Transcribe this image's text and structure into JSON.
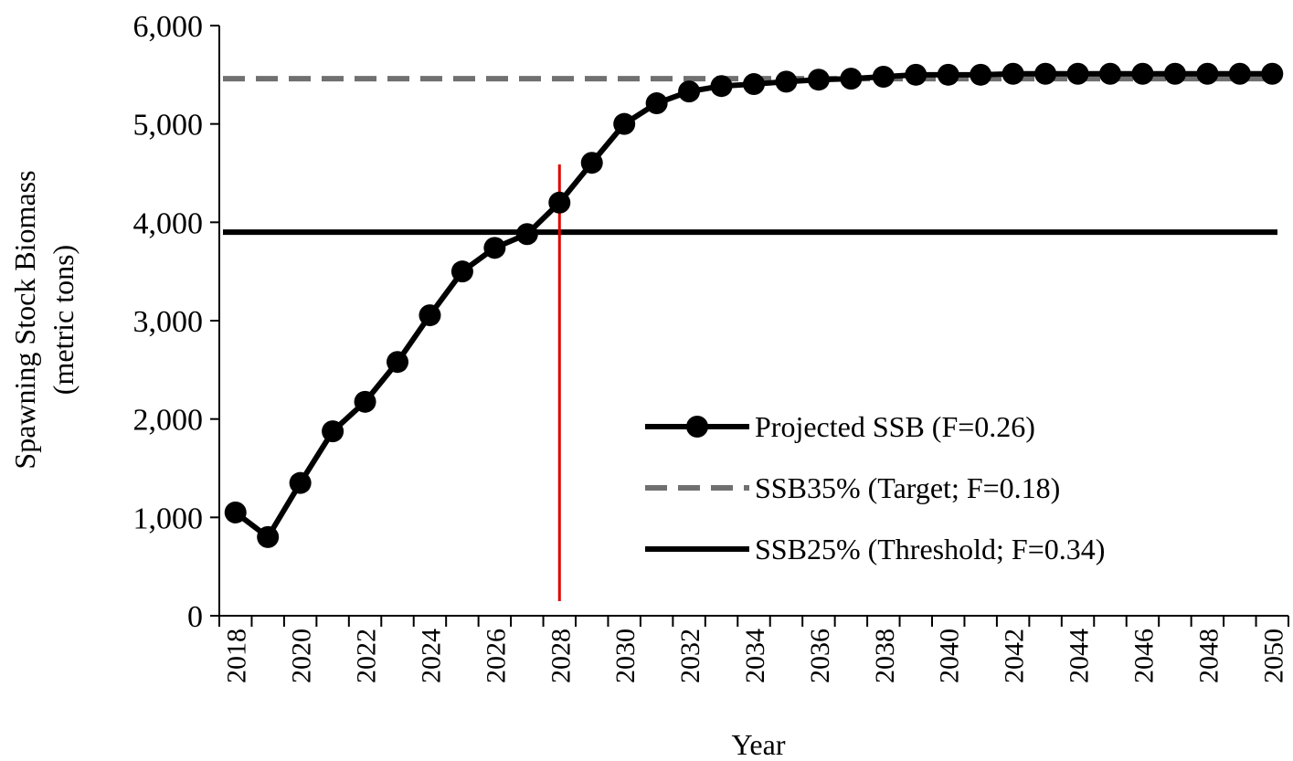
{
  "chart_data": {
    "type": "line",
    "xlabel": "Year",
    "ylabel": [
      "Spawning Stock Biomass",
      "(metric tons)"
    ],
    "categories": [
      "2018",
      null,
      "2020",
      null,
      "2022",
      null,
      "2024",
      null,
      "2026",
      null,
      "2028",
      null,
      "2030",
      null,
      "2032",
      null,
      "2034",
      null,
      "2036",
      null,
      "2038",
      null,
      "2040",
      null,
      "2042",
      null,
      "2044",
      null,
      "2046",
      null,
      "2048",
      null,
      "2050"
    ],
    "series": [
      {
        "name": "Projected SSB (F=0.26)",
        "color": "#000000",
        "values": [
          1050,
          800,
          1350,
          1875,
          2175,
          2580,
          3055,
          3500,
          3740,
          3880,
          4200,
          4605,
          5000,
          5210,
          5330,
          5385,
          5405,
          5430,
          5450,
          5460,
          5480,
          5500,
          5500,
          5500,
          5510,
          5510,
          5510,
          5510,
          5510,
          5510,
          5510,
          5510,
          5510
        ]
      }
    ],
    "hlines": [
      {
        "name": "SSB35% (Target; F=0.18)",
        "color": "#707070",
        "dashed": true,
        "value": 5460
      },
      {
        "name": "SSB25% (Threshold; F=0.34)",
        "color": "#000000",
        "dashed": false,
        "value": 3900
      }
    ],
    "vline": {
      "category": "2028",
      "color": "#e00000"
    },
    "ylim": [
      0,
      6000
    ],
    "yticks": [
      0,
      {
        "value": 1000,
        "label": "1,000"
      },
      {
        "value": 2000,
        "label": "2,000"
      },
      {
        "value": 3000,
        "label": "3,000"
      },
      {
        "value": 4000,
        "label": "4,000"
      },
      {
        "value": 5000,
        "label": "5,000"
      },
      {
        "value": 6000,
        "label": "6,000"
      }
    ],
    "legend": "center-right"
  }
}
